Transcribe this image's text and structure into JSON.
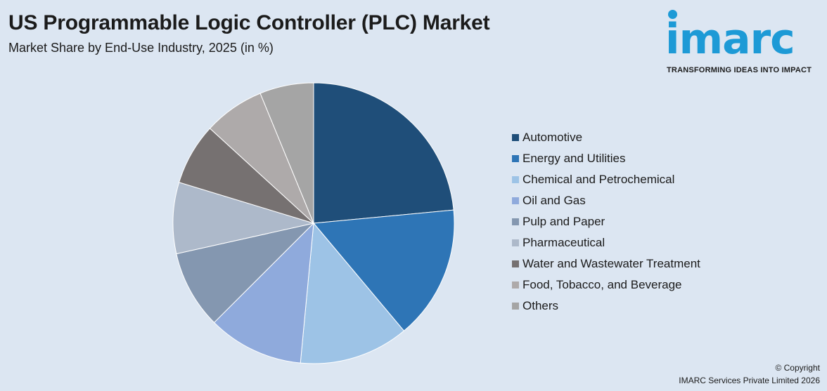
{
  "title": "US Programmable Logic Controller (PLC) Market",
  "subtitle": "Market Share by End-Use Industry, 2025 (in %)",
  "logo": {
    "text": "imarc",
    "tagline": "TRANSFORMING IDEAS INTO IMPACT"
  },
  "copyright": {
    "line1": "© Copyright",
    "line2": "IMARC Services Private Limited 2026"
  },
  "chart_data": {
    "type": "pie",
    "title": "US Programmable Logic Controller (PLC) Market",
    "subtitle": "Market Share by End-Use Industry, 2025 (in %)",
    "categories": [
      "Automotive",
      "Energy and Utilities",
      "Chemical and Petrochemical",
      "Oil and Gas",
      "Pulp and Paper",
      "Pharmaceutical",
      "Water and Wastewater Treatment",
      "Food, Tobacco, and Beverage",
      "Others"
    ],
    "values": [
      23.5,
      15.4,
      12.6,
      11.0,
      9.0,
      8.2,
      7.1,
      7.0,
      6.2
    ],
    "colors": [
      "#1f4e79",
      "#2e75b6",
      "#9dc3e6",
      "#8faadc",
      "#8497b0",
      "#adb9ca",
      "#767171",
      "#aeaaaa",
      "#a5a5a5"
    ],
    "legend_position": "right",
    "start_angle": "12 o'clock",
    "direction": "clockwise"
  }
}
